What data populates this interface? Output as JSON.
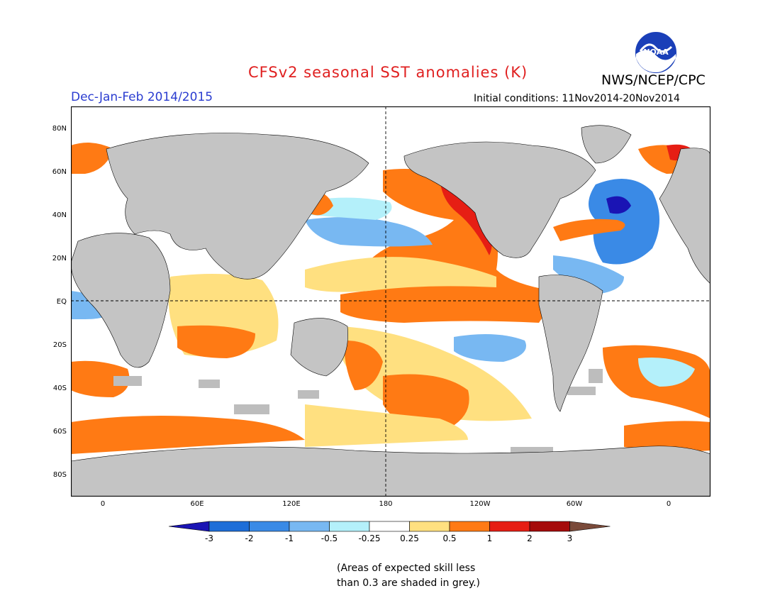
{
  "title": "CFSv2 seasonal SST anomalies (K)",
  "season": "Dec-Jan-Feb 2014/2015",
  "organization": "NWS/NCEP/CPC",
  "logo_text": "NOAA",
  "initial_conditions": "Initial conditions: 11Nov2014-20Nov2014",
  "lat_labels": [
    "80N",
    "60N",
    "40N",
    "20N",
    "EQ",
    "20S",
    "40S",
    "60S",
    "80S"
  ],
  "lon_labels": [
    "0",
    "60E",
    "120E",
    "180",
    "120W",
    "60W",
    "0"
  ],
  "colorbar": {
    "labels": [
      "-3",
      "-2",
      "-1",
      "-0.5",
      "-0.25",
      "0.25",
      "0.5",
      "1",
      "2",
      "3"
    ],
    "colors": [
      "#1a14b4",
      "#1e6ed8",
      "#3a8ae6",
      "#78b8f2",
      "#b4f0fa",
      "#ffffff",
      "#ffe080",
      "#ff7a14",
      "#e61e14",
      "#a50a0a",
      "#7a4a3a"
    ]
  },
  "note_line1": "(Areas of expected skill less",
  "note_line2": "than 0.3 are shaded in grey.)",
  "colors": {
    "land": "#c4c4c4",
    "grey_skill": "#bdbdbd"
  }
}
